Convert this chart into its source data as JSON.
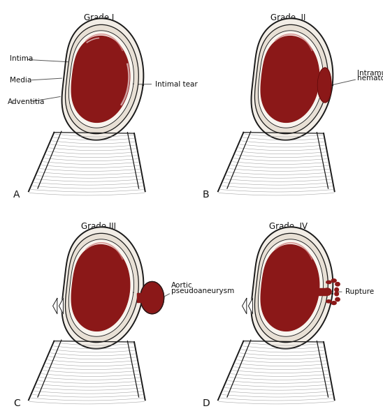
{
  "bg_color": "#ffffff",
  "dark_red": "#8B1818",
  "outline_color": "#1a1a1a",
  "white": "#ffffff",
  "gray_line": "#888888",
  "ann_color": "#444444",
  "titles": [
    "Grade I",
    "Grade  II",
    "Grade III",
    "Grade  IV"
  ],
  "panels": [
    "A",
    "B",
    "C",
    "D"
  ],
  "title_fontsize": 8.5,
  "label_fontsize": 7.5,
  "panel_letter_fontsize": 10
}
